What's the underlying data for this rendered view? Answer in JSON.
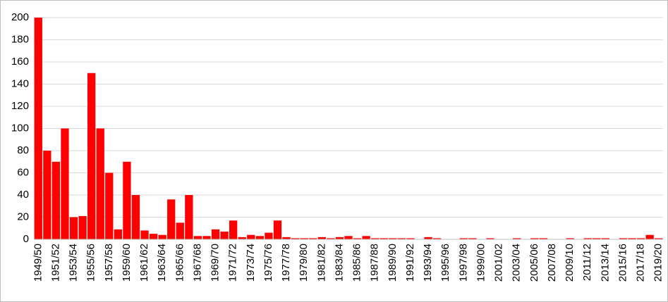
{
  "chart_data": {
    "type": "bar",
    "categories": [
      "1949/50",
      null,
      "1951/52",
      null,
      "1953/54",
      null,
      "1955/56",
      null,
      "1957/58",
      null,
      "1959/60",
      null,
      "1961/62",
      null,
      "1963/64",
      null,
      "1965/66",
      null,
      "1967/68",
      null,
      "1969/70",
      null,
      "1971/72",
      null,
      "1973/74",
      null,
      "1975/76",
      null,
      "1977/78",
      null,
      "1979/80",
      null,
      "1981/82",
      null,
      "1983/84",
      null,
      "1985/86",
      null,
      "1987/88",
      null,
      "1989/90",
      null,
      "1991/92",
      null,
      "1993/94",
      null,
      "1995/96",
      null,
      "1997/98",
      null,
      "1999/00",
      null,
      "2001/02",
      null,
      "2003/04",
      null,
      "2005/06",
      null,
      "2007/08",
      null,
      "2009/10",
      null,
      "2011/12",
      null,
      "2013/14",
      null,
      "2015/16",
      null,
      "2017/18",
      null,
      "2019/20"
    ],
    "values": [
      200,
      80,
      70,
      100,
      20,
      21,
      150,
      100,
      60,
      9,
      70,
      40,
      8,
      5,
      4,
      36,
      15,
      40,
      3,
      3,
      9,
      7,
      17,
      2,
      4,
      3,
      6,
      17,
      2,
      1,
      1,
      1,
      2,
      1,
      2,
      3,
      1,
      3,
      1,
      1,
      1,
      1,
      1,
      0,
      2,
      1,
      0,
      0,
      1,
      1,
      0,
      1,
      0,
      0,
      1,
      0,
      1,
      1,
      0,
      0,
      1,
      0,
      1,
      1,
      1,
      0,
      1,
      1,
      1,
      4,
      1
    ],
    "color": "#ff0000",
    "ylim": [
      0,
      200
    ],
    "yticks": [
      0,
      20,
      40,
      60,
      80,
      100,
      120,
      140,
      160,
      180,
      200
    ],
    "grid": true
  }
}
